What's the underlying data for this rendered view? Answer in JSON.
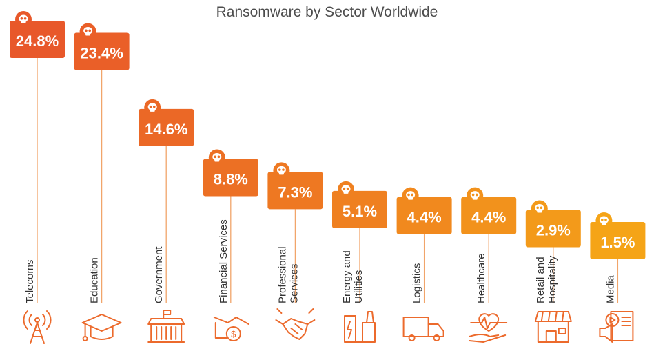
{
  "chart_data": {
    "type": "bar",
    "title": "Ransomware by Sector Worldwide",
    "categories": [
      [
        "Telecoms"
      ],
      [
        "Education"
      ],
      [
        "Government"
      ],
      [
        "Financial Services"
      ],
      [
        "Professional",
        "Services"
      ],
      [
        "Energy and",
        "Utilities"
      ],
      [
        "Logistics"
      ],
      [
        "Healthcare"
      ],
      [
        "Retail and",
        "Hospitality"
      ],
      [
        "Media"
      ]
    ],
    "values": [
      24.8,
      23.4,
      14.6,
      8.8,
      7.3,
      5.1,
      4.4,
      4.4,
      2.9,
      1.5
    ],
    "value_labels": [
      "24.8%",
      "23.4%",
      "14.6%",
      "8.8%",
      "7.3%",
      "5.1%",
      "4.4%",
      "4.4%",
      "2.9%",
      "1.5%"
    ],
    "unit": "%",
    "label_icon": "skull-icon",
    "sector_icons": [
      "cell-tower-icon",
      "graduation-cap-icon",
      "government-building-icon",
      "finance-chart-coin-icon",
      "handshake-icon",
      "power-plant-icon",
      "delivery-truck-icon",
      "heartbeat-hand-icon",
      "storefront-icon",
      "media-player-icon"
    ],
    "colors": [
      "#e8582a",
      "#ea5f28",
      "#eb6826",
      "#ec7024",
      "#ee7822",
      "#ef8020",
      "#f1891e",
      "#f2921c",
      "#f39a1a",
      "#f5a417"
    ],
    "stem_color": "#f1a56a",
    "icon_color": "#ec6a2c"
  }
}
